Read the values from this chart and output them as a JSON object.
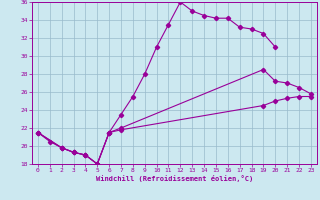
{
  "xlabel": "Windchill (Refroidissement éolien,°C)",
  "bg_color": "#cce8f0",
  "line_color": "#990099",
  "grid_color": "#99bbcc",
  "xlim": [
    -0.5,
    23.5
  ],
  "ylim": [
    18,
    36
  ],
  "yticks": [
    18,
    20,
    22,
    24,
    26,
    28,
    30,
    32,
    34,
    36
  ],
  "xticks": [
    0,
    1,
    2,
    3,
    4,
    5,
    6,
    7,
    8,
    9,
    10,
    11,
    12,
    13,
    14,
    15,
    16,
    17,
    18,
    19,
    20,
    21,
    22,
    23
  ],
  "s1x": [
    0,
    1,
    2,
    3,
    4,
    5,
    6,
    7,
    8,
    9,
    10,
    11,
    12,
    13,
    14,
    15,
    16,
    17,
    18,
    19,
    20
  ],
  "s1y": [
    21.5,
    20.5,
    19.8,
    19.3,
    19.0,
    18.0,
    21.5,
    23.5,
    25.5,
    28.0,
    31.0,
    33.5,
    36.0,
    35.0,
    34.5,
    34.2,
    34.2,
    33.2,
    33.0,
    32.5,
    31.0
  ],
  "s2x": [
    0,
    2,
    3,
    4,
    5,
    6,
    7,
    19,
    20,
    21,
    22,
    23
  ],
  "s2y": [
    21.5,
    19.8,
    19.3,
    19.0,
    18.0,
    21.5,
    22.0,
    28.5,
    27.2,
    27.0,
    26.5,
    25.8
  ],
  "s3x": [
    0,
    2,
    3,
    4,
    5,
    6,
    7,
    19,
    20,
    21,
    22,
    23
  ],
  "s3y": [
    21.5,
    19.8,
    19.3,
    19.0,
    18.0,
    21.5,
    21.8,
    24.5,
    25.0,
    25.3,
    25.5,
    25.5
  ]
}
